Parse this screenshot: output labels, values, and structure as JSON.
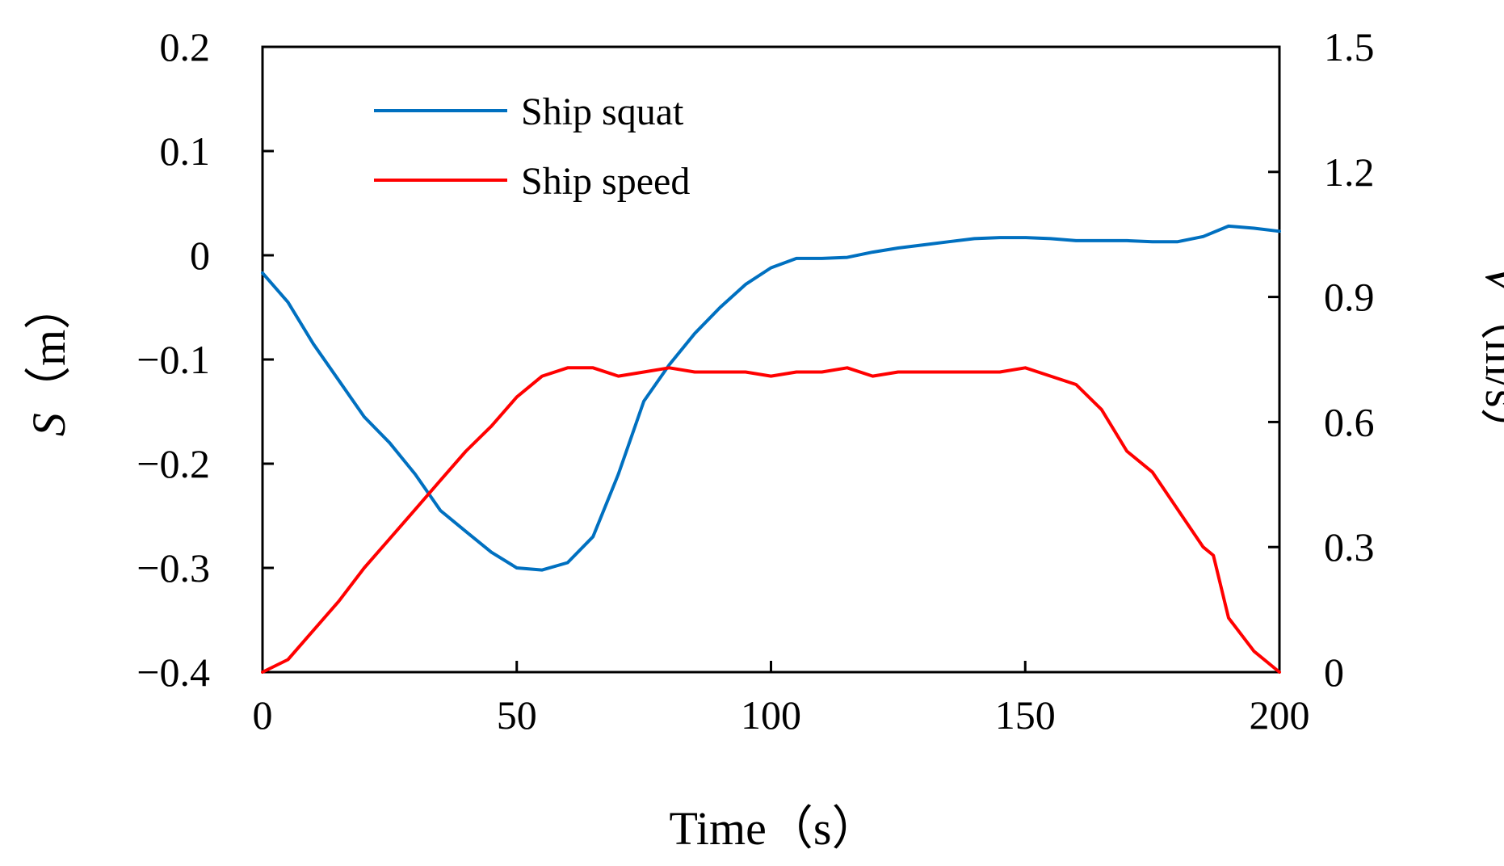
{
  "chart_data": {
    "type": "line",
    "title": "",
    "xlabel": "Time（s）",
    "ylabel_left": {
      "symbol": "S",
      "unit": "（m）"
    },
    "ylabel_right": {
      "symbol": "V",
      "unit": "（m/s）"
    },
    "xlim": [
      0,
      200
    ],
    "ylim_left": [
      -0.4,
      0.2
    ],
    "ylim_right": [
      0,
      1.5
    ],
    "x_ticks": [
      "0",
      "50",
      "100",
      "150",
      "200"
    ],
    "y_left_ticks": [
      "0.2",
      "0.1",
      "0",
      "−0.1",
      "−0.2",
      "−0.3",
      "−0.4"
    ],
    "y_right_ticks": [
      "1.5",
      "1.2",
      "0.9",
      "0.6",
      "0.3",
      "0"
    ],
    "grid": false,
    "legend_position": "top-left",
    "series": [
      {
        "name": "Ship squat",
        "axis": "left",
        "color": "#0070c0",
        "x": [
          0,
          5,
          10,
          15,
          20,
          25,
          30,
          35,
          40,
          45,
          50,
          55,
          60,
          65,
          70,
          75,
          80,
          85,
          90,
          95,
          100,
          105,
          110,
          115,
          120,
          125,
          130,
          135,
          140,
          145,
          150,
          155,
          160,
          165,
          170,
          175,
          180,
          185,
          190,
          195,
          200
        ],
        "values": [
          -0.017,
          -0.045,
          -0.085,
          -0.12,
          -0.155,
          -0.18,
          -0.21,
          -0.245,
          -0.265,
          -0.285,
          -0.3,
          -0.302,
          -0.295,
          -0.27,
          -0.21,
          -0.14,
          -0.105,
          -0.075,
          -0.05,
          -0.028,
          -0.012,
          -0.003,
          -0.003,
          -0.002,
          0.003,
          0.007,
          0.01,
          0.013,
          0.016,
          0.017,
          0.017,
          0.016,
          0.014,
          0.014,
          0.014,
          0.013,
          0.013,
          0.018,
          0.028,
          0.026,
          0.023
        ]
      },
      {
        "name": "Ship speed",
        "axis": "right",
        "color": "#ff0000",
        "x": [
          0,
          5,
          10,
          15,
          20,
          25,
          30,
          35,
          40,
          45,
          50,
          55,
          60,
          65,
          70,
          75,
          80,
          85,
          90,
          95,
          100,
          105,
          110,
          115,
          120,
          125,
          130,
          135,
          140,
          145,
          150,
          155,
          160,
          165,
          170,
          175,
          180,
          185,
          187,
          190,
          195,
          200
        ],
        "values": [
          0,
          0.03,
          0.1,
          0.17,
          0.25,
          0.32,
          0.39,
          0.46,
          0.53,
          0.59,
          0.66,
          0.71,
          0.73,
          0.73,
          0.71,
          0.72,
          0.73,
          0.72,
          0.72,
          0.72,
          0.71,
          0.72,
          0.72,
          0.73,
          0.71,
          0.72,
          0.72,
          0.72,
          0.72,
          0.72,
          0.73,
          0.71,
          0.69,
          0.63,
          0.53,
          0.48,
          0.39,
          0.3,
          0.28,
          0.13,
          0.05,
          0
        ]
      }
    ]
  }
}
